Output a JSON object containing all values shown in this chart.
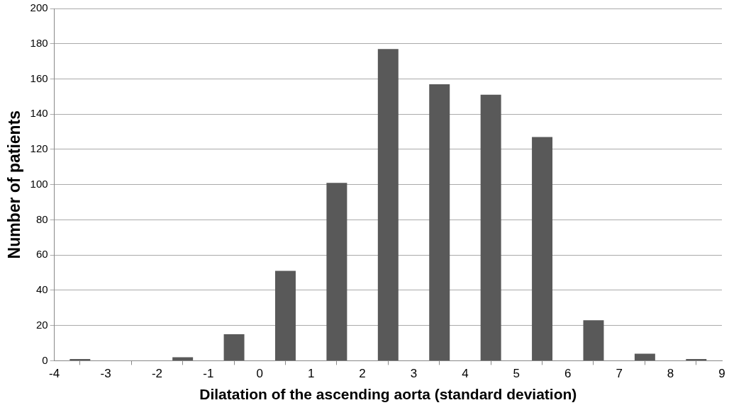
{
  "chart_data": {
    "type": "histogram",
    "xlabel": "Dilatation of the ascending aorta (standard deviation)",
    "ylabel": "Number of patients",
    "bins": [
      -4,
      -3,
      -2,
      -1,
      0,
      1,
      2,
      3,
      4,
      5,
      6,
      7,
      8,
      9
    ],
    "values": [
      1,
      0,
      2,
      15,
      51,
      101,
      177,
      157,
      151,
      127,
      23,
      4,
      1
    ],
    "color": "#595959",
    "xlim": [
      -4,
      9
    ],
    "xticks": [
      -4,
      -3,
      -2,
      -1,
      0,
      1,
      2,
      3,
      4,
      5,
      6,
      7,
      8,
      9
    ],
    "ylim": [
      0,
      200
    ],
    "yticks": [
      0,
      20,
      40,
      60,
      80,
      100,
      120,
      140,
      160,
      180,
      200
    ],
    "grid": "y",
    "legend": false
  }
}
